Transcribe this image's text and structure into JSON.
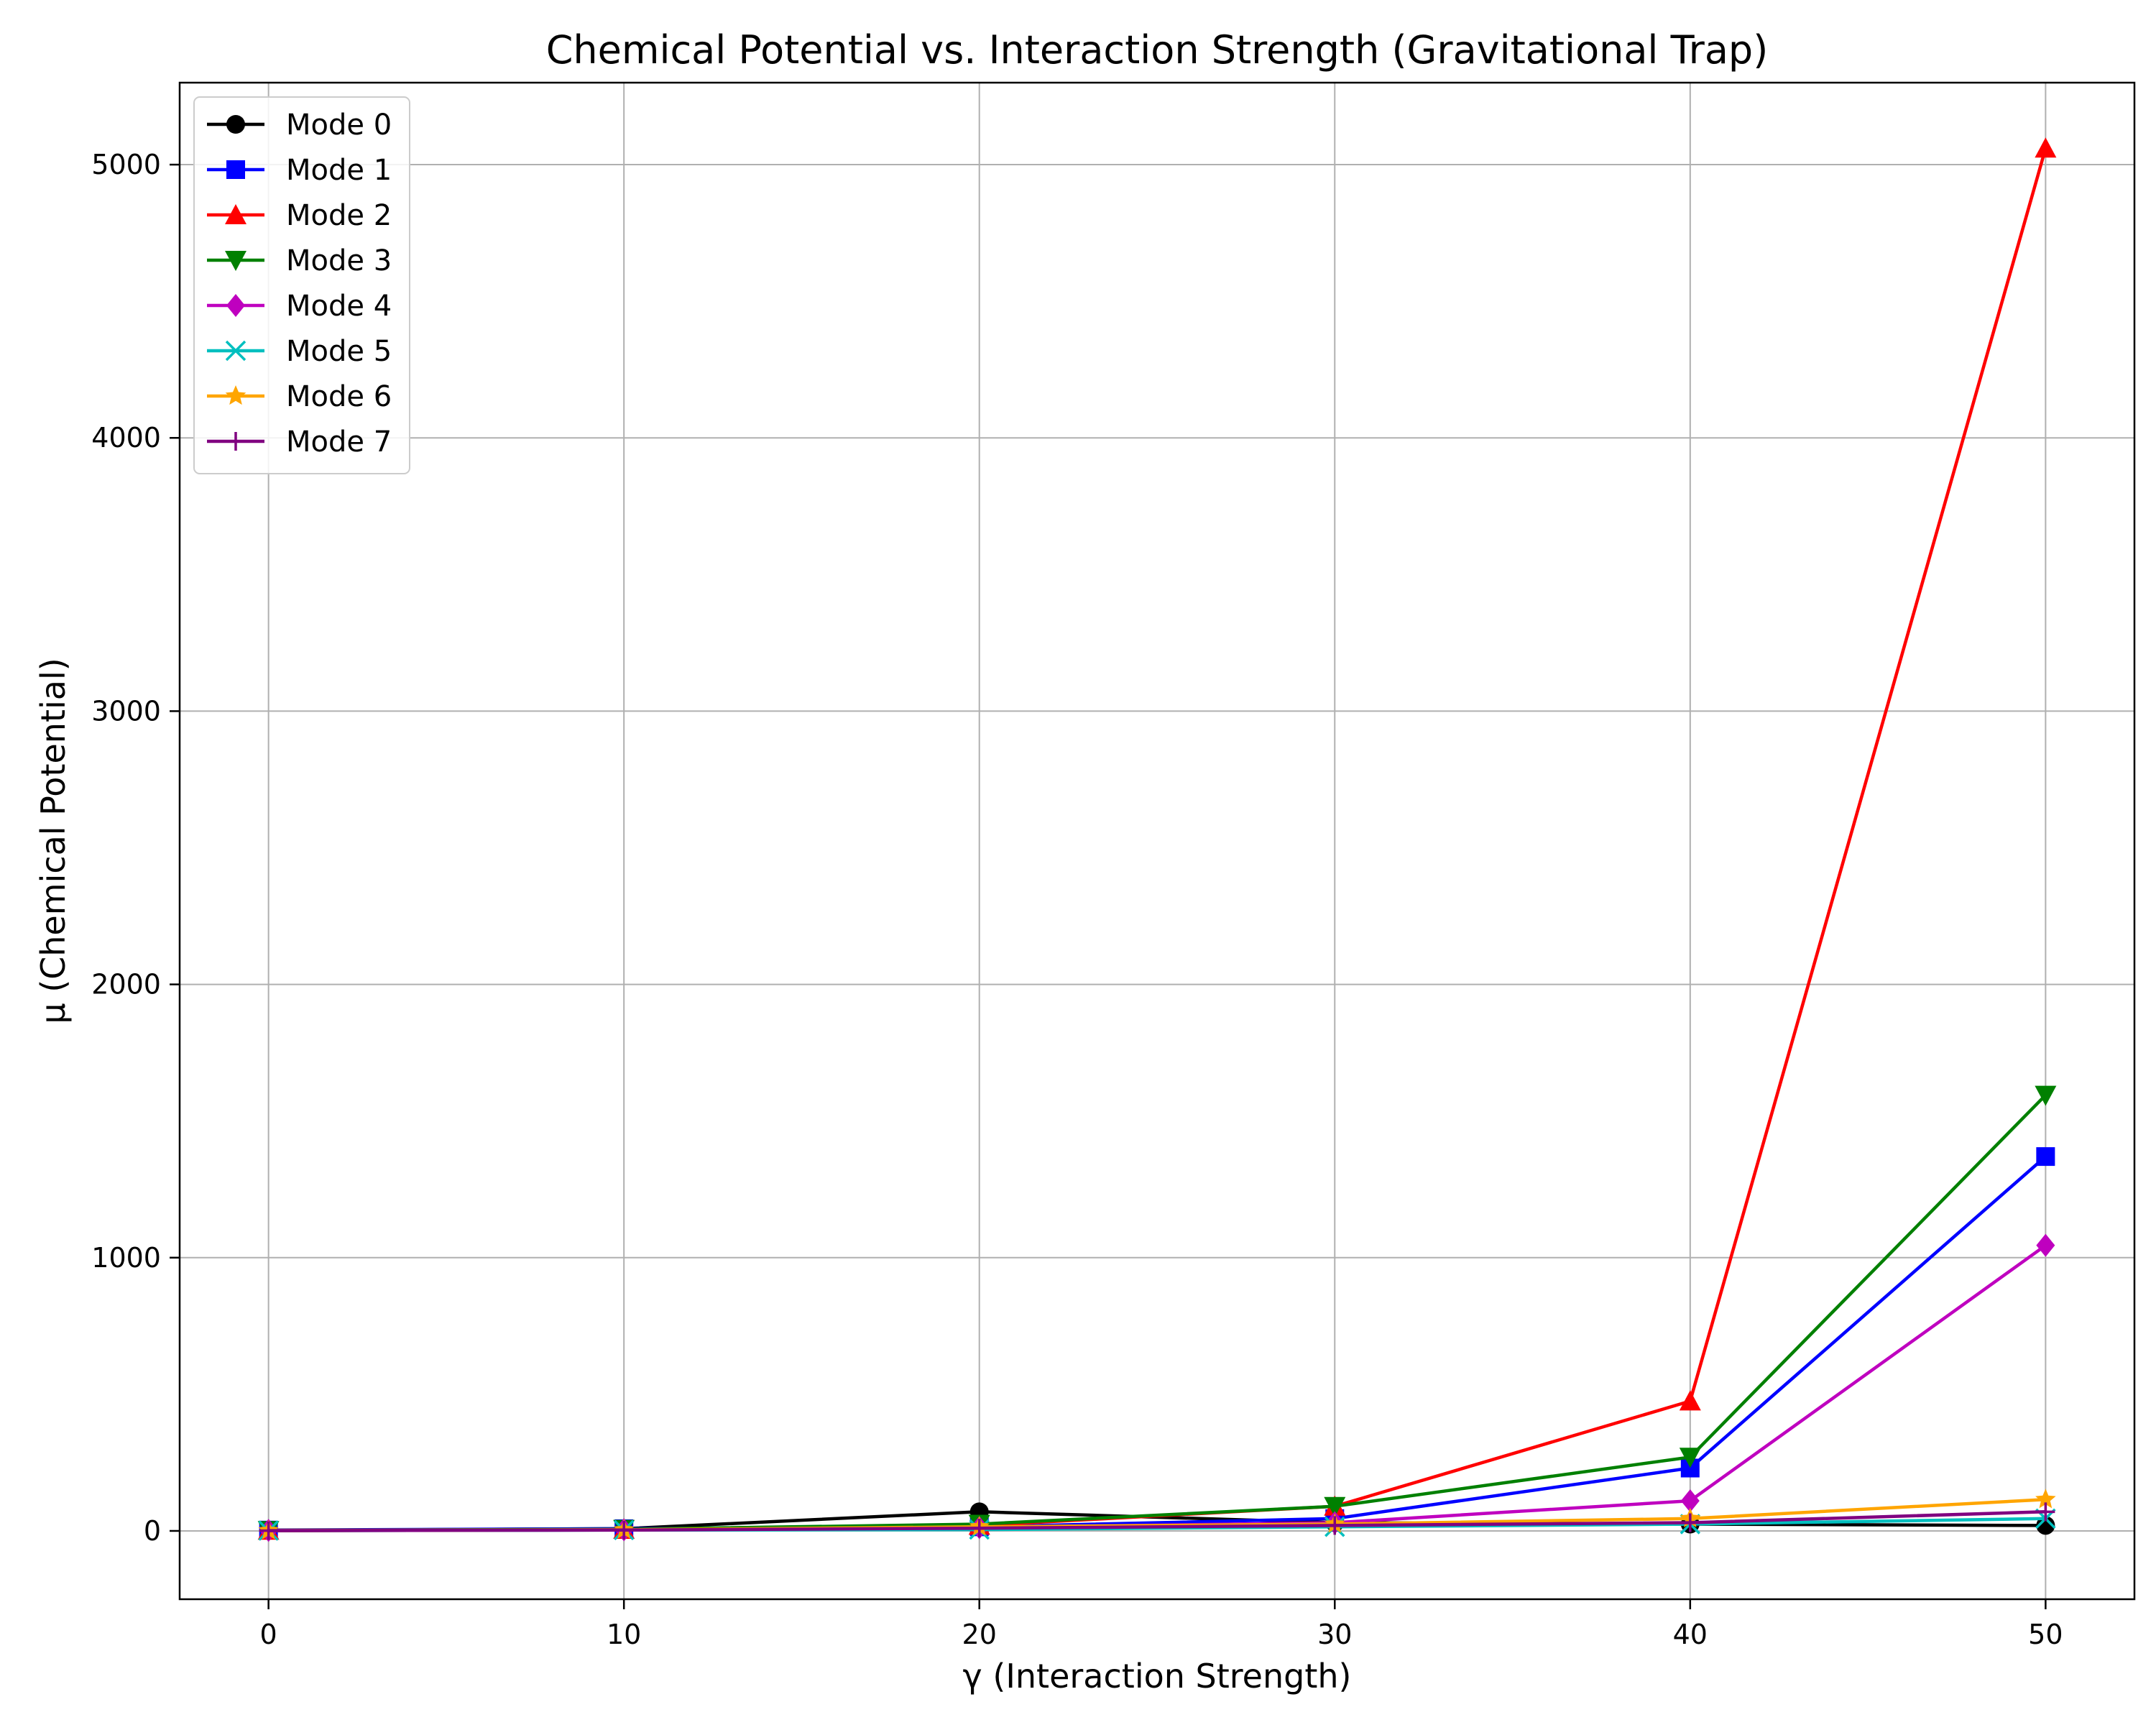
{
  "chart_data": {
    "type": "line",
    "title": "Chemical Potential vs. Interaction Strength (Gravitational Trap)",
    "xlabel": "γ (Interaction Strength)",
    "ylabel": "μ (Chemical Potential)",
    "x": [
      0,
      10,
      20,
      30,
      40,
      50
    ],
    "xlim": [
      -2.5,
      52.5
    ],
    "ylim": [
      -250,
      5300
    ],
    "xticks": [
      0,
      10,
      20,
      30,
      40,
      50
    ],
    "yticks": [
      0,
      1000,
      2000,
      3000,
      4000,
      5000
    ],
    "xtick_labels": [
      "0",
      "10",
      "20",
      "30",
      "40",
      "50"
    ],
    "ytick_labels": [
      "0",
      "1000",
      "2000",
      "3000",
      "4000",
      "5000"
    ],
    "grid": true,
    "legend_position": "upper-left",
    "series": [
      {
        "name": "Mode 0",
        "color": "#000000",
        "marker": "circle",
        "values": [
          2,
          8,
          70,
          30,
          25,
          20
        ]
      },
      {
        "name": "Mode 1",
        "color": "#0000ff",
        "marker": "square",
        "values": [
          3,
          8,
          15,
          45,
          230,
          1370
        ]
      },
      {
        "name": "Mode 2",
        "color": "#ff0000",
        "marker": "triangle-up",
        "values": [
          2,
          5,
          20,
          90,
          475,
          5060
        ]
      },
      {
        "name": "Mode 3",
        "color": "#008000",
        "marker": "triangle-down",
        "values": [
          2,
          6,
          25,
          90,
          270,
          1595
        ]
      },
      {
        "name": "Mode 4",
        "color": "#bf00bf",
        "marker": "diamond",
        "values": [
          2,
          4,
          12,
          30,
          110,
          1045
        ]
      },
      {
        "name": "Mode 5",
        "color": "#00bfbf",
        "marker": "x",
        "values": [
          1,
          3,
          5,
          15,
          25,
          45
        ]
      },
      {
        "name": "Mode 6",
        "color": "#ffa500",
        "marker": "star",
        "values": [
          1,
          4,
          15,
          25,
          45,
          115
        ]
      },
      {
        "name": "Mode 7",
        "color": "#800080",
        "marker": "plus",
        "values": [
          1,
          3,
          10,
          20,
          30,
          70
        ]
      }
    ]
  }
}
